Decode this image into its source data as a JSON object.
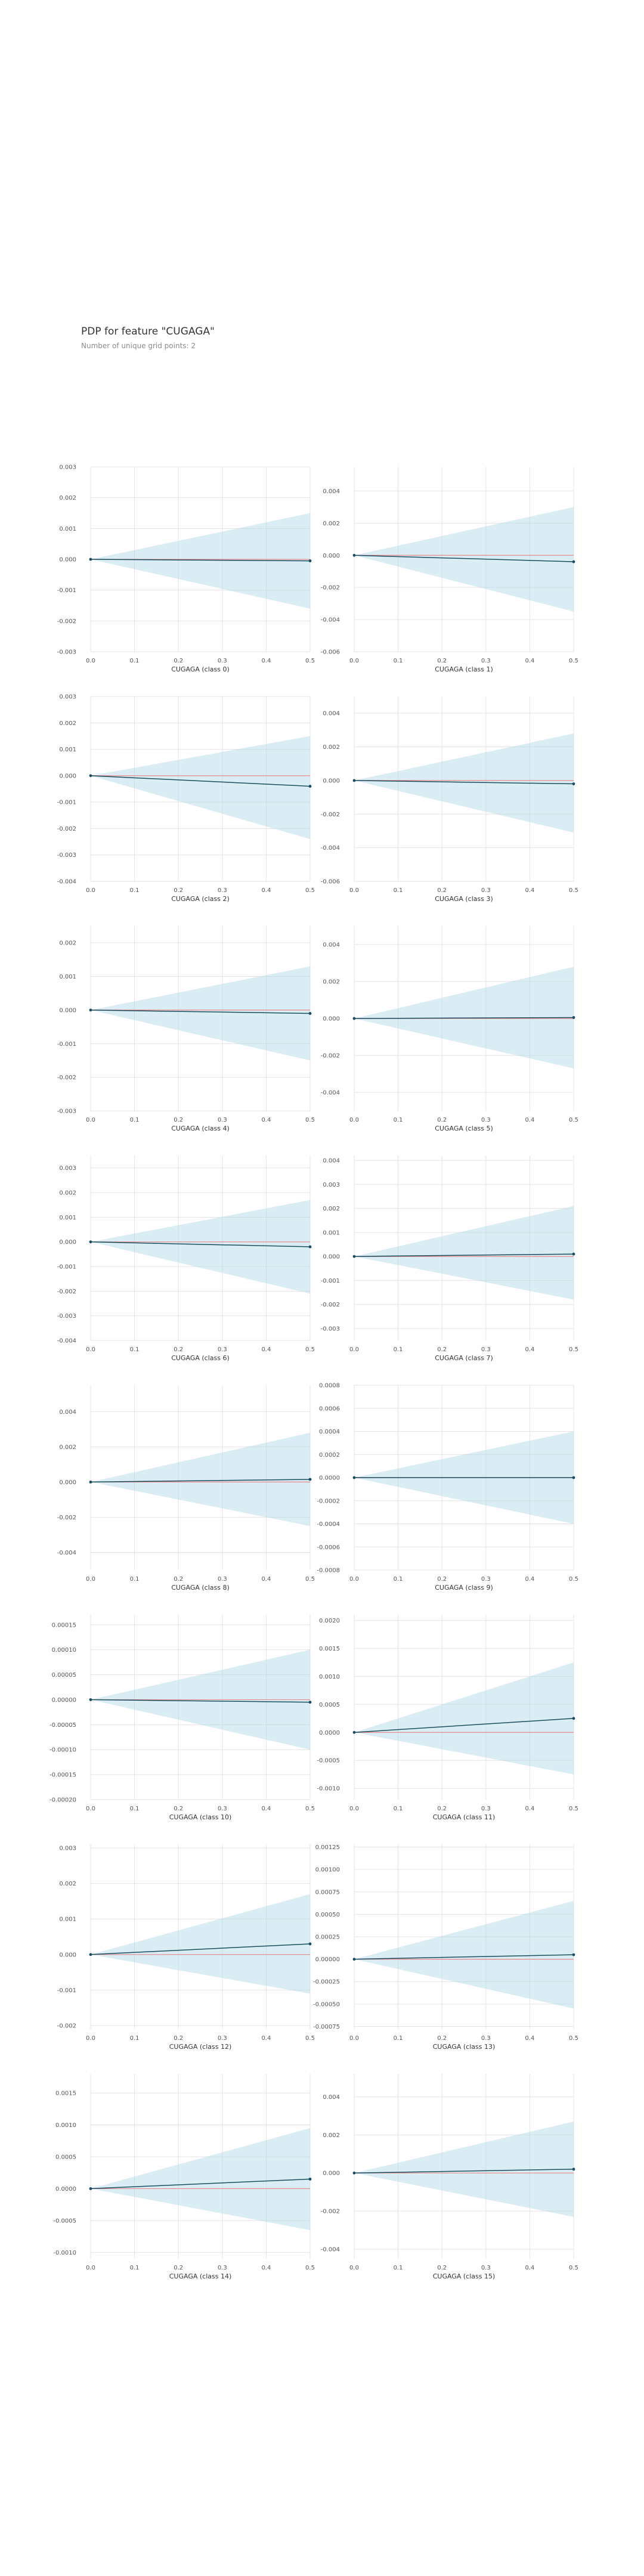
{
  "header": {
    "title": "PDP for feature \"CUGAGA\"",
    "subtitle": "Number of unique grid points: 2"
  },
  "style": {
    "band": "#add8e6",
    "line": "#1a4e5f",
    "zero_line": "#e88a8a",
    "grid": "#e3e3e3",
    "tick_text": "#555555"
  },
  "chart_data": [
    {
      "type": "line",
      "xlabel": "CUGAGA (class 0)",
      "x": [
        0,
        0.5
      ],
      "y": [
        0,
        -5e-05
      ],
      "band_upper": [
        0,
        0.0015
      ],
      "band_lower": [
        0,
        -0.0016
      ],
      "xticks": [
        0,
        0.1,
        0.2,
        0.3,
        0.4,
        0.5
      ],
      "yticks": [
        "0.003",
        "0.002",
        "0.001",
        "0.000",
        "-0.001",
        "-0.002",
        "-0.003"
      ],
      "ylim": [
        -0.003,
        0.003
      ]
    },
    {
      "type": "line",
      "xlabel": "CUGAGA (class 1)",
      "x": [
        0,
        0.5
      ],
      "y": [
        0,
        -0.0004
      ],
      "band_upper": [
        0,
        0.003
      ],
      "band_lower": [
        0,
        -0.0035
      ],
      "xticks": [
        0,
        0.1,
        0.2,
        0.3,
        0.4,
        0.5
      ],
      "yticks": [
        "0.004",
        "0.002",
        "0.000",
        "-0.002",
        "-0.004",
        "-0.006"
      ],
      "ylim": [
        -0.006,
        0.0055
      ]
    },
    {
      "type": "line",
      "xlabel": "CUGAGA (class 2)",
      "x": [
        0,
        0.5
      ],
      "y": [
        0,
        -0.0004
      ],
      "band_upper": [
        0,
        0.0015
      ],
      "band_lower": [
        0,
        -0.0024
      ],
      "xticks": [
        0,
        0.1,
        0.2,
        0.3,
        0.4,
        0.5
      ],
      "yticks": [
        "0.003",
        "0.002",
        "0.001",
        "0.000",
        "-0.001",
        "-0.002",
        "-0.003",
        "-0.004"
      ],
      "ylim": [
        -0.004,
        0.003
      ]
    },
    {
      "type": "line",
      "xlabel": "CUGAGA (class 3)",
      "x": [
        0,
        0.5
      ],
      "y": [
        0,
        -0.0002
      ],
      "band_upper": [
        0,
        0.0028
      ],
      "band_lower": [
        0,
        -0.0031
      ],
      "xticks": [
        0,
        0.1,
        0.2,
        0.3,
        0.4,
        0.5
      ],
      "yticks": [
        "0.004",
        "0.002",
        "0.000",
        "-0.002",
        "-0.004",
        "-0.006"
      ],
      "ylim": [
        -0.006,
        0.005
      ]
    },
    {
      "type": "line",
      "xlabel": "CUGAGA (class 4)",
      "x": [
        0,
        0.5
      ],
      "y": [
        0,
        -0.0001
      ],
      "band_upper": [
        0,
        0.0013
      ],
      "band_lower": [
        0,
        -0.0015
      ],
      "xticks": [
        0,
        0.1,
        0.2,
        0.3,
        0.4,
        0.5
      ],
      "yticks": [
        "0.002",
        "0.001",
        "0.000",
        "-0.001",
        "-0.002",
        "-0.003"
      ],
      "ylim": [
        -0.003,
        0.0025
      ]
    },
    {
      "type": "line",
      "xlabel": "CUGAGA (class 5)",
      "x": [
        0,
        0.5
      ],
      "y": [
        0,
        5e-05
      ],
      "band_upper": [
        0,
        0.0028
      ],
      "band_lower": [
        0,
        -0.0027
      ],
      "xticks": [
        0,
        0.1,
        0.2,
        0.3,
        0.4,
        0.5
      ],
      "yticks": [
        "0.004",
        "0.002",
        "0.000",
        "-0.002",
        "-0.004"
      ],
      "ylim": [
        -0.005,
        0.005
      ]
    },
    {
      "type": "line",
      "xlabel": "CUGAGA (class 6)",
      "x": [
        0,
        0.5
      ],
      "y": [
        0,
        -0.0002
      ],
      "band_upper": [
        0,
        0.0017
      ],
      "band_lower": [
        0,
        -0.0021
      ],
      "xticks": [
        0,
        0.1,
        0.2,
        0.3,
        0.4,
        0.5
      ],
      "yticks": [
        "0.003",
        "0.002",
        "0.001",
        "0.000",
        "-0.001",
        "-0.002",
        "-0.003",
        "-0.004"
      ],
      "ylim": [
        -0.004,
        0.0035
      ]
    },
    {
      "type": "line",
      "xlabel": "CUGAGA (class 7)",
      "x": [
        0,
        0.5
      ],
      "y": [
        0,
        0.0001
      ],
      "band_upper": [
        0,
        0.0021
      ],
      "band_lower": [
        0,
        -0.0018
      ],
      "xticks": [
        0,
        0.1,
        0.2,
        0.3,
        0.4,
        0.5
      ],
      "yticks": [
        "0.004",
        "0.003",
        "0.002",
        "0.001",
        "0.000",
        "-0.001",
        "-0.002",
        "-0.003"
      ],
      "ylim": [
        -0.0035,
        0.0042
      ]
    },
    {
      "type": "line",
      "xlabel": "CUGAGA (class 8)",
      "x": [
        0,
        0.5
      ],
      "y": [
        0,
        0.00015
      ],
      "band_upper": [
        0,
        0.0028
      ],
      "band_lower": [
        0,
        -0.0025
      ],
      "xticks": [
        0,
        0.1,
        0.2,
        0.3,
        0.4,
        0.5
      ],
      "yticks": [
        "0.004",
        "0.002",
        "0.000",
        "-0.002",
        "-0.004"
      ],
      "ylim": [
        -0.005,
        0.0055
      ]
    },
    {
      "type": "line",
      "xlabel": "CUGAGA (class 9)",
      "x": [
        0,
        0.5
      ],
      "y": [
        0,
        0.0
      ],
      "band_upper": [
        0,
        0.0004
      ],
      "band_lower": [
        0,
        -0.0004
      ],
      "xticks": [
        0,
        0.1,
        0.2,
        0.3,
        0.4,
        0.5
      ],
      "yticks": [
        "0.0008",
        "0.0006",
        "0.0004",
        "0.0002",
        "0.0000",
        "-0.0002",
        "-0.0004",
        "-0.0006",
        "-0.0008"
      ],
      "ylim": [
        -0.0008,
        0.0008
      ]
    },
    {
      "type": "line",
      "xlabel": "CUGAGA (class 10)",
      "x": [
        0,
        0.5
      ],
      "y": [
        0,
        -5e-06
      ],
      "band_upper": [
        0,
        0.0001
      ],
      "band_lower": [
        0,
        -0.0001
      ],
      "xticks": [
        0,
        0.1,
        0.2,
        0.3,
        0.4,
        0.5
      ],
      "yticks": [
        "0.00015",
        "0.00010",
        "0.00005",
        "0.00000",
        "-0.00005",
        "-0.00010",
        "-0.00015",
        "-0.00020"
      ],
      "ylim": [
        -0.0002,
        0.00017
      ]
    },
    {
      "type": "line",
      "xlabel": "CUGAGA (class 11)",
      "x": [
        0,
        0.5
      ],
      "y": [
        0,
        0.00025
      ],
      "band_upper": [
        0,
        0.00125
      ],
      "band_lower": [
        0,
        -0.00075
      ],
      "xticks": [
        0,
        0.1,
        0.2,
        0.3,
        0.4,
        0.5
      ],
      "yticks": [
        "0.0020",
        "0.0015",
        "0.0010",
        "0.0005",
        "0.0000",
        "-0.0005",
        "-0.0010"
      ],
      "ylim": [
        -0.0012,
        0.0021
      ]
    },
    {
      "type": "line",
      "xlabel": "CUGAGA (class 12)",
      "x": [
        0,
        0.5
      ],
      "y": [
        0,
        0.0003
      ],
      "band_upper": [
        0,
        0.0017
      ],
      "band_lower": [
        0,
        -0.0011
      ],
      "xticks": [
        0,
        0.1,
        0.2,
        0.3,
        0.4,
        0.5
      ],
      "yticks": [
        "0.003",
        "0.002",
        "0.001",
        "0.000",
        "-0.001",
        "-0.002"
      ],
      "ylim": [
        -0.0021,
        0.0031
      ]
    },
    {
      "type": "line",
      "xlabel": "CUGAGA (class 13)",
      "x": [
        0,
        0.5
      ],
      "y": [
        0,
        5e-05
      ],
      "band_upper": [
        0,
        0.00065
      ],
      "band_lower": [
        0,
        -0.00055
      ],
      "xticks": [
        0,
        0.1,
        0.2,
        0.3,
        0.4,
        0.5
      ],
      "yticks": [
        "0.00125",
        "0.00100",
        "0.00075",
        "0.00050",
        "0.00025",
        "0.00000",
        "-0.00025",
        "-0.00050",
        "-0.00075"
      ],
      "ylim": [
        -0.00078,
        0.00128
      ]
    },
    {
      "type": "line",
      "xlabel": "CUGAGA (class 14)",
      "x": [
        0,
        0.5
      ],
      "y": [
        0,
        0.00015
      ],
      "band_upper": [
        0,
        0.00095
      ],
      "band_lower": [
        0,
        -0.00065
      ],
      "xticks": [
        0,
        0.1,
        0.2,
        0.3,
        0.4,
        0.5
      ],
      "yticks": [
        "0.0015",
        "0.0010",
        "0.0005",
        "0.0000",
        "-0.0005",
        "-0.0010"
      ],
      "ylim": [
        -0.0011,
        0.0018
      ]
    },
    {
      "type": "line",
      "xlabel": "CUGAGA (class 15)",
      "x": [
        0,
        0.5
      ],
      "y": [
        0,
        0.0002
      ],
      "band_upper": [
        0,
        0.0027
      ],
      "band_lower": [
        0,
        -0.0023
      ],
      "xticks": [
        0,
        0.1,
        0.2,
        0.3,
        0.4,
        0.5
      ],
      "yticks": [
        "0.004",
        "0.002",
        "0.000",
        "-0.002",
        "-0.004"
      ],
      "ylim": [
        -0.0045,
        0.0052
      ]
    }
  ]
}
